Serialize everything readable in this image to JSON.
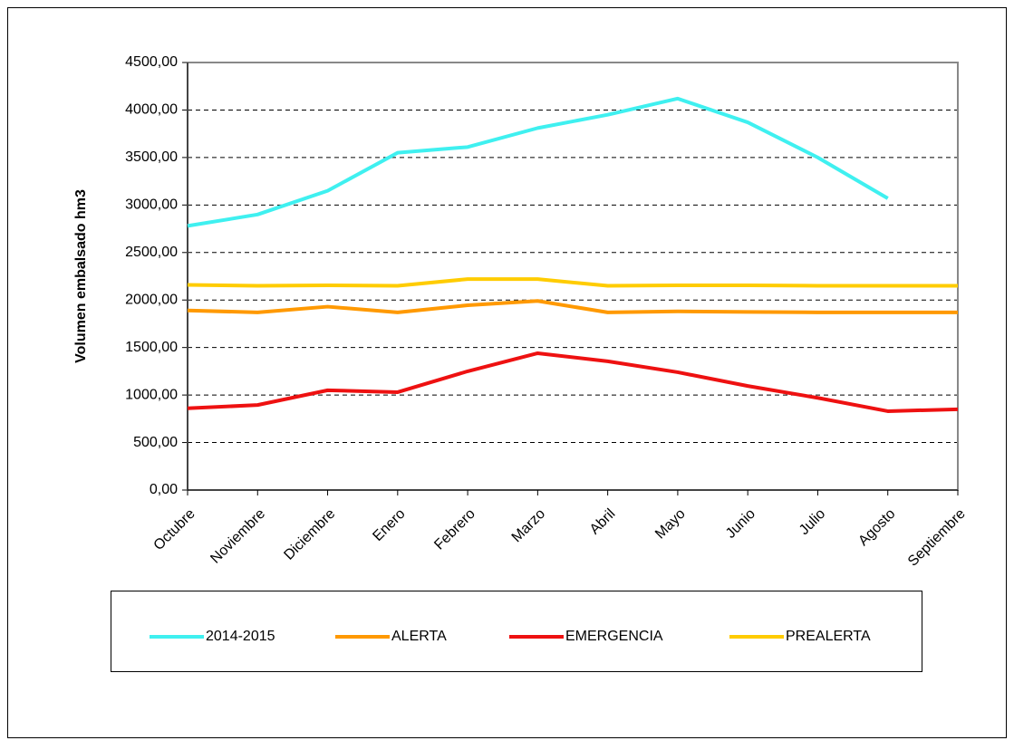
{
  "chart_data": {
    "type": "line",
    "y_label": "Volumen embalsado hm3",
    "categories": [
      "Octubre",
      "Noviembre",
      "Diciembre",
      "Enero",
      "Febrero",
      "Marzo",
      "Abril",
      "Mayo",
      "Junio",
      "Julio",
      "Agosto",
      "Septiembre"
    ],
    "series": [
      {
        "name": "2014-2015",
        "color": "#3ff0f0",
        "values": [
          2780,
          2900,
          3150,
          3550,
          3610,
          3810,
          3950,
          4120,
          3870,
          3500,
          3070,
          null
        ]
      },
      {
        "name": "ALERTA",
        "color": "#ff9900",
        "values": [
          1890,
          1870,
          1930,
          1870,
          1945,
          1990,
          1870,
          1880,
          1875,
          1870,
          1870,
          1870
        ]
      },
      {
        "name": "EMERGENCIA",
        "color": "#ee1111",
        "values": [
          860,
          895,
          1050,
          1030,
          1250,
          1440,
          1355,
          1240,
          1095,
          970,
          830,
          850
        ]
      },
      {
        "name": "PREALERTA",
        "color": "#ffcc00",
        "values": [
          2160,
          2150,
          2155,
          2150,
          2220,
          2220,
          2150,
          2155,
          2155,
          2150,
          2150,
          2150
        ]
      }
    ],
    "ylim": [
      0,
      4500
    ],
    "yticks": [
      {
        "value": 0,
        "label": "0,00"
      },
      {
        "value": 500,
        "label": "500,00"
      },
      {
        "value": 1000,
        "label": "1000,00"
      },
      {
        "value": 1500,
        "label": "1500,00"
      },
      {
        "value": 2000,
        "label": "2000,00"
      },
      {
        "value": 2500,
        "label": "2500,00"
      },
      {
        "value": 3000,
        "label": "3000,00"
      },
      {
        "value": 3500,
        "label": "3500,00"
      },
      {
        "value": 4000,
        "label": "4000,00"
      },
      {
        "value": 4500,
        "label": "4500,00"
      }
    ],
    "grid": true,
    "legend": "bottom"
  }
}
